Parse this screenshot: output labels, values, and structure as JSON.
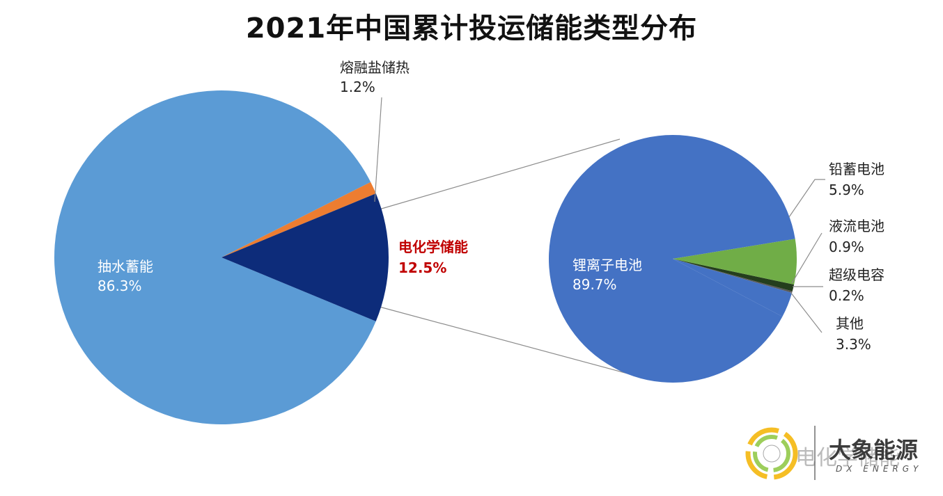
{
  "title": "2021年中国累计投运储能类型分布",
  "colors": {
    "pumped_hydro": "#5B9BD5",
    "molten_salt": "#ED7D31",
    "electrochem": "#0D2C7A",
    "lithium": "#4472C4",
    "lead_acid": "#70AD47",
    "flow": "#243E1D",
    "supercap": "#595959",
    "other": "#4472C4",
    "highlight_label": "#C00000",
    "connector": "#8C8C8C"
  },
  "chart_data": [
    {
      "type": "pie",
      "slices": [
        {
          "name": "抽水蓄能",
          "value": 86.3,
          "label": "86.3%"
        },
        {
          "name": "熔融盐储热",
          "value": 1.2,
          "label": "1.2%"
        },
        {
          "name": "电化学储能",
          "value": 12.5,
          "label": "12.5%"
        }
      ]
    },
    {
      "type": "pie",
      "parent_slice": "电化学储能",
      "slices": [
        {
          "name": "锂离子电池",
          "value": 89.7,
          "label": "89.7%"
        },
        {
          "name": "铅蓄电池",
          "value": 5.9,
          "label": "5.9%"
        },
        {
          "name": "液流电池",
          "value": 0.9,
          "label": "0.9%"
        },
        {
          "name": "超级电容",
          "value": 0.2,
          "label": "0.2%"
        },
        {
          "name": "其他",
          "value": 3.3,
          "label": "3.3%"
        }
      ]
    }
  ],
  "watermark": {
    "brand": "大象能源",
    "brand_en": "DX ENERGY",
    "channel": "电化学储能"
  }
}
